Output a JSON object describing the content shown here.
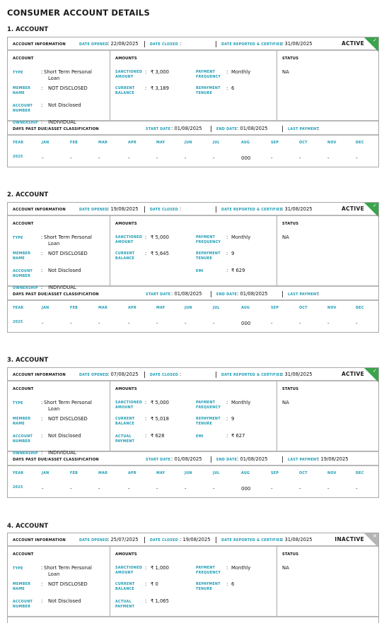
{
  "page_title": "CONSUMER ACCOUNT DETAILS",
  "labels": {
    "account_information": "ACCOUNT INFORMATION",
    "date_opened": "DATE OPENED",
    "date_closed": "DATE CLOSED",
    "date_reported": "DATE REPORTED & CERTIFIED",
    "account": "ACCOUNT",
    "amounts": "AMOUNTS",
    "status": "STATUS",
    "type": "TYPE",
    "member_name_1": "MEMBER",
    "member_name_2": "NAME",
    "account_number_1": "ACCOUNT",
    "account_number_2": "NUMBER",
    "ownership": "OWNERSHIP",
    "sanctioned_1": "SANCTIONED",
    "sanctioned_2": "AMOUNT",
    "current_1": "CURRENT",
    "current_2": "BALANCE",
    "actual_1": "ACTUAL",
    "actual_2": "PAYMENT",
    "payment_freq_1": "PAYMENT",
    "payment_freq_2": "FREQUENCY",
    "repayment_1": "REPAYMENT",
    "repayment_2": "TENURE",
    "emi": "EMI",
    "dpd": "DAYS PAST DUE/ASSET CLASSIFICATION",
    "start_date": "START DATE",
    "end_date": "END DATE",
    "last_payment": "LAST PAYMENT",
    "year": "YEAR",
    "months": [
      "JAN",
      "FEB",
      "MAR",
      "APR",
      "MAY",
      "JUN",
      "JUL",
      "AUG",
      "SEP",
      "OCT",
      "NOV",
      "DEC"
    ]
  },
  "accounts": [
    {
      "heading": "1. ACCOUNT",
      "date_opened": ": 22/08/2025",
      "date_closed": ":",
      "date_reported": ": 31/08/2025",
      "status_word": "ACTIVE",
      "corner_glyph": "✓",
      "type_1": "Short Term Personal",
      "type_2": "Loan",
      "member_name": "NOT DISCLOSED",
      "account_number": "Not Disclosed",
      "ownership": "INDIVIDUAL",
      "sanctioned": "₹ 3,000",
      "current": "₹ 3,189",
      "payment_frequency": "Monthly",
      "repayment_tenure": "6",
      "status_value": "NA",
      "start_date": ": 01/08/2025",
      "end_date": ": 01/08/2025",
      "last_payment": ":",
      "year": "2025",
      "month_values": [
        "-",
        "-",
        "-",
        "-",
        "-",
        "-",
        "-",
        "000",
        "-",
        "-",
        "-",
        "-"
      ]
    },
    {
      "heading": "2. ACCOUNT",
      "date_opened": ": 19/08/2025",
      "date_closed": ":",
      "date_reported": ": 31/08/2025",
      "status_word": "ACTIVE",
      "corner_glyph": "✓",
      "type_1": "Short Term Personal",
      "type_2": "Loan",
      "member_name": "NOT DISCLOSED",
      "account_number": "Not Disclosed",
      "ownership": "INDIVIDUAL",
      "sanctioned": "₹ 5,000",
      "current": "₹ 5,645",
      "payment_frequency": "Monthly",
      "repayment_tenure": "9",
      "emi": "₹ 629",
      "status_value": "NA",
      "start_date": ": 01/08/2025",
      "end_date": ": 01/08/2025",
      "last_payment": ":",
      "year": "2025",
      "month_values": [
        "-",
        "-",
        "-",
        "-",
        "-",
        "-",
        "-",
        "000",
        "-",
        "-",
        "-",
        "-"
      ]
    },
    {
      "heading": "3. ACCOUNT",
      "date_opened": ": 07/08/2025",
      "date_closed": ":",
      "date_reported": ": 31/08/2025",
      "status_word": "ACTIVE",
      "corner_glyph": "✓",
      "type_1": "Short Term Personal",
      "type_2": "Loan",
      "member_name": "NOT DISCLOSED",
      "account_number": "Not Disclosed",
      "ownership": "INDIVIDUAL",
      "sanctioned": "₹ 5,000",
      "current": "₹ 5,018",
      "actual": "₹ 628",
      "payment_frequency": "Monthly",
      "repayment_tenure": "9",
      "emi": "₹ 627",
      "status_value": "NA",
      "start_date": ": 01/08/2025",
      "end_date": ": 01/08/2025",
      "last_payment": ": 19/08/2025",
      "year": "2025",
      "month_values": [
        "-",
        "-",
        "-",
        "-",
        "-",
        "-",
        "-",
        "000",
        "-",
        "-",
        "-",
        "-"
      ]
    },
    {
      "heading": "4. ACCOUNT",
      "date_opened": ": 25/07/2025",
      "date_closed": ": 19/08/2025",
      "date_reported": ": 31/08/2025",
      "status_word": "INACTIVE",
      "corner_glyph": "✕",
      "type_1": "Short Term Personal",
      "type_2": "Loan",
      "member_name": "NOT DISCLOSED",
      "account_number": "Not Disclosed",
      "sanctioned": "₹ 1,000",
      "current": "₹ 0",
      "actual": "₹ 1,065",
      "payment_frequency": "Monthly",
      "repayment_tenure": "6",
      "status_value": "NA"
    }
  ],
  "colors": {
    "teal": "#1a9bb4",
    "active": "#3aa34b",
    "inactive": "#b5b5b5"
  }
}
